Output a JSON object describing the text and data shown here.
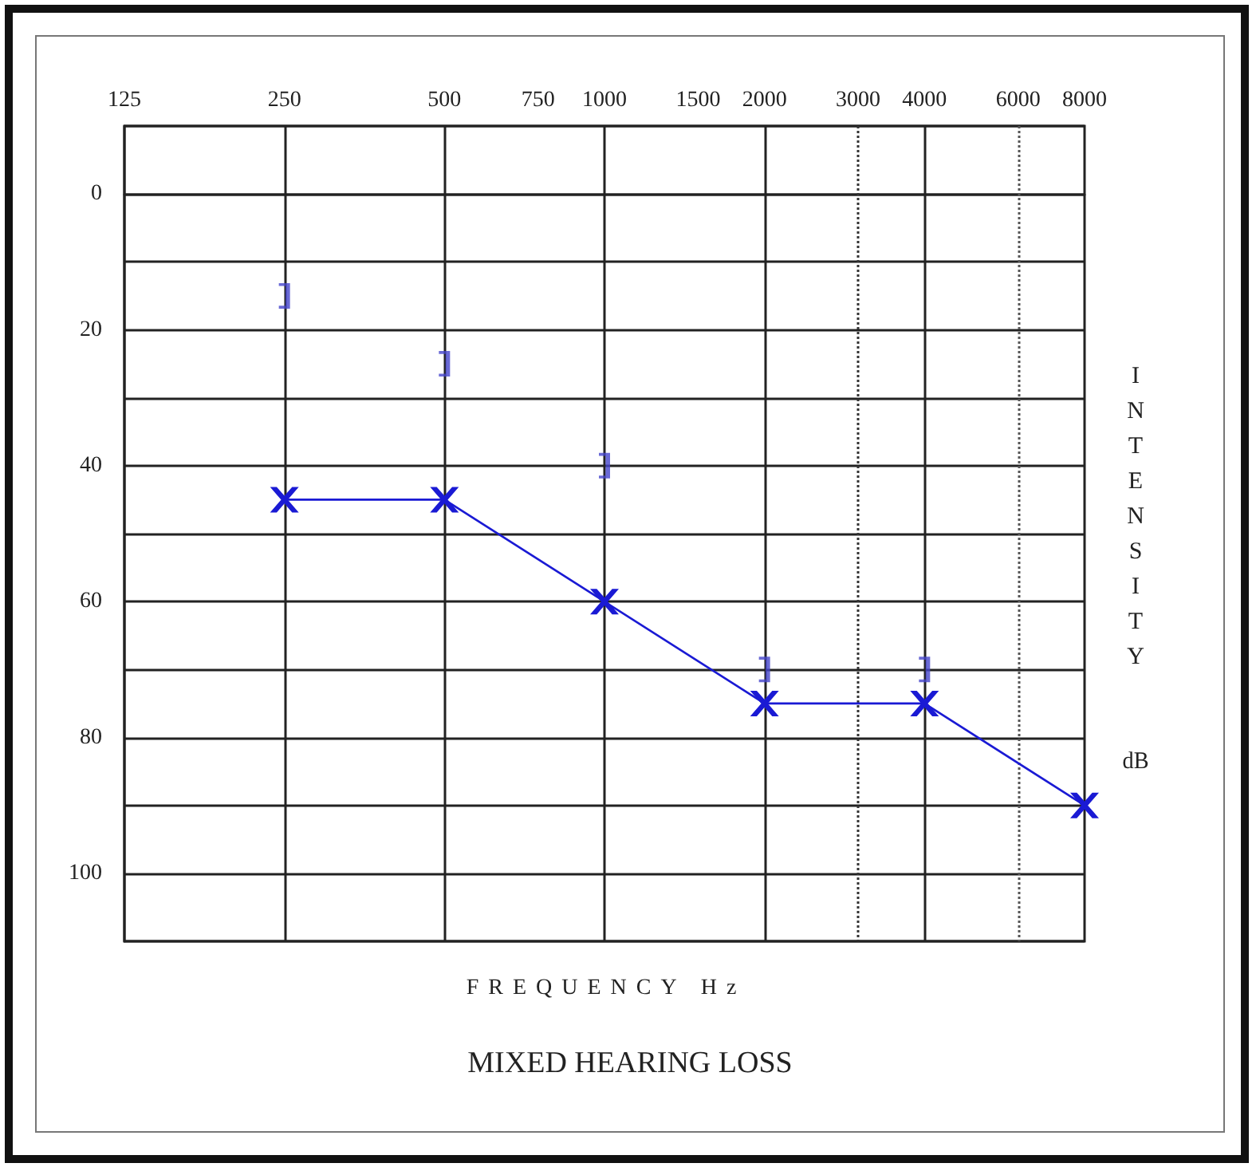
{
  "chart_data": {
    "type": "line",
    "title": "MIXED HEARING LOSS",
    "xlabel": "FREQUENCY Hz",
    "ylabel": "INTENSITY dB",
    "log": "x",
    "xlim": [
      125,
      8000
    ],
    "xticks": [
      125,
      250,
      500,
      750,
      1000,
      1500,
      2000,
      3000,
      4000,
      6000,
      8000
    ],
    "ylim": [
      110,
      -10
    ],
    "yticks": [
      {
        "value": -10,
        "label": null
      },
      0,
      {
        "value": 10,
        "label": null
      },
      20,
      {
        "value": 30,
        "label": null
      },
      40,
      {
        "value": 50,
        "label": null
      },
      60,
      {
        "value": 70,
        "label": null
      },
      80,
      {
        "value": 90,
        "label": null
      },
      100,
      {
        "value": 110,
        "label": null
      }
    ],
    "grid": "y",
    "line_style": "solid",
    "series": [
      {
        "marker": "cross",
        "color": "#1a1ad4",
        "x": [
          250,
          500,
          1000,
          2000,
          4000,
          8000
        ],
        "values": [
          45,
          45,
          60,
          75,
          75,
          90
        ]
      },
      {
        "type": "scatter",
        "color": "#4545cc",
        "x": [
          250,
          500,
          1000,
          2000,
          4000
        ],
        "values": [
          15,
          25,
          40,
          70,
          70
        ]
      }
    ],
    "ref_lines": [
      {
        "axis": "x",
        "value": 250,
        "color": "#222222"
      },
      {
        "axis": "x",
        "value": 500,
        "color": "#222222"
      },
      {
        "axis": "x",
        "value": 1000,
        "color": "#222222"
      },
      {
        "axis": "x",
        "value": 2000,
        "color": "#222222"
      },
      {
        "axis": "x",
        "value": 4000,
        "color": "#222222"
      },
      {
        "axis": "x",
        "value": 3000,
        "color": "#333333",
        "line_style": "dotted"
      },
      {
        "axis": "x",
        "value": 6000,
        "color": "#555555",
        "line_style": "dotted"
      }
    ]
  }
}
